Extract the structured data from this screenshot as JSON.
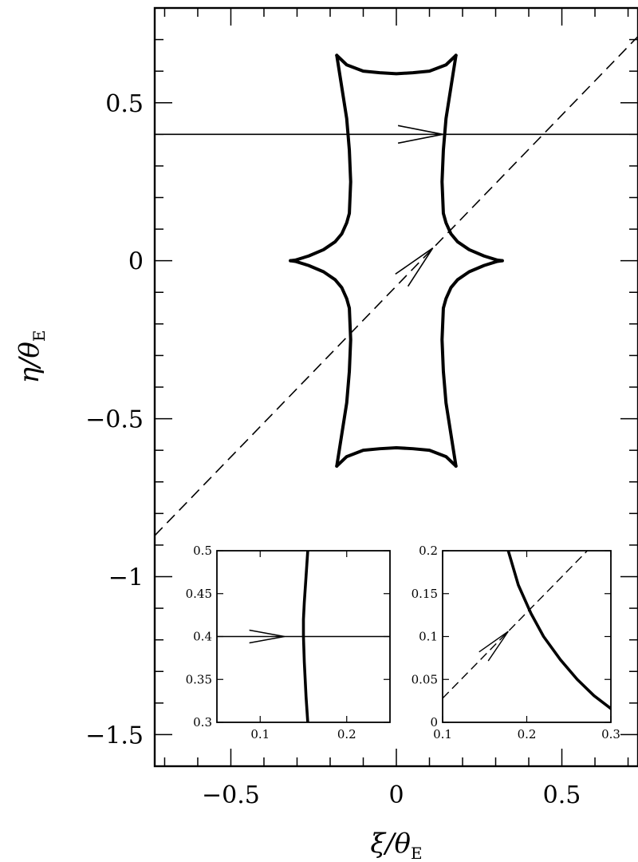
{
  "chart_data": [
    {
      "type": "line",
      "xlabel": "ξ/θ",
      "xlabel_sub": "E",
      "ylabel": "η/θ",
      "ylabel_sub": "E",
      "xlim": [
        -0.73,
        0.73
      ],
      "ylim": [
        -1.6,
        0.8
      ],
      "xticks": [
        -0.5,
        0,
        0.5
      ],
      "xtick_labels": [
        "−0.5",
        "0",
        "0.5"
      ],
      "yticks": [
        0.5,
        0,
        -0.5,
        -1,
        -1.5
      ],
      "ytick_labels": [
        "0.5",
        "0",
        "−0.5",
        "−1",
        "−1.5"
      ],
      "x_minor_step": 0.1,
      "y_minor_step": 0.1,
      "grid": false,
      "series": [
        {
          "style": "thick-solid",
          "x": [
            -0.18,
            -0.15,
            -0.1,
            -0.05,
            0,
            0.05,
            0.1,
            0.15,
            0.18
          ],
          "y": [
            0.65,
            0.62,
            0.6,
            0.595,
            0.592,
            0.595,
            0.6,
            0.62,
            0.65
          ]
        },
        {
          "style": "thick-solid",
          "x": [
            0.18,
            0.165,
            0.15,
            0.142,
            0.138,
            0.142,
            0.15,
            0.165,
            0.185,
            0.22,
            0.265,
            0.305,
            0.32
          ],
          "y": [
            0.65,
            0.55,
            0.45,
            0.35,
            0.25,
            0.15,
            0.12,
            0.085,
            0.06,
            0.035,
            0.015,
            0.002,
            0.0
          ]
        },
        {
          "style": "thick-solid",
          "x": [
            0.32,
            0.305,
            0.265,
            0.22,
            0.185,
            0.165,
            0.15,
            0.142,
            0.138,
            0.142,
            0.15,
            0.165,
            0.18
          ],
          "y": [
            0.0,
            -0.002,
            -0.015,
            -0.035,
            -0.06,
            -0.085,
            -0.12,
            -0.15,
            -0.25,
            -0.35,
            -0.45,
            -0.55,
            -0.65
          ]
        },
        {
          "style": "thick-solid",
          "x": [
            0.18,
            0.15,
            0.1,
            0.05,
            0,
            -0.05,
            -0.1,
            -0.15,
            -0.18
          ],
          "y": [
            -0.65,
            -0.62,
            -0.6,
            -0.595,
            -0.592,
            -0.595,
            -0.6,
            -0.62,
            -0.65
          ]
        },
        {
          "style": "thick-solid",
          "x": [
            -0.18,
            -0.165,
            -0.15,
            -0.142,
            -0.138,
            -0.142,
            -0.15,
            -0.165,
            -0.185,
            -0.22,
            -0.265,
            -0.305,
            -0.32
          ],
          "y": [
            -0.65,
            -0.55,
            -0.45,
            -0.35,
            -0.25,
            -0.15,
            -0.12,
            -0.085,
            -0.06,
            -0.035,
            -0.015,
            -0.002,
            0.0
          ]
        },
        {
          "style": "thick-solid",
          "x": [
            -0.32,
            -0.305,
            -0.265,
            -0.22,
            -0.185,
            -0.165,
            -0.15,
            -0.142,
            -0.138,
            -0.142,
            -0.15,
            -0.165,
            -0.18
          ],
          "y": [
            0.0,
            0.002,
            0.015,
            0.035,
            0.06,
            0.085,
            0.12,
            0.15,
            0.25,
            0.35,
            0.45,
            0.55,
            0.65
          ]
        },
        {
          "style": "thin-solid",
          "x": [
            -0.73,
            0.73
          ],
          "y": [
            0.4,
            0.4
          ],
          "arrow_at": [
            0.14,
            0.4
          ]
        },
        {
          "style": "dashed",
          "x": [
            -0.73,
            0.73
          ],
          "y": [
            -0.87,
            0.71
          ],
          "arrow_at": [
            0.11,
            0.04
          ]
        }
      ]
    },
    {
      "type": "line",
      "xlim": [
        0.05,
        0.25
      ],
      "ylim": [
        0.3,
        0.5
      ],
      "xticks": [
        0.1,
        0.2
      ],
      "xtick_labels": [
        "0.1",
        "0.2"
      ],
      "yticks": [
        0.3,
        0.35,
        0.4,
        0.45,
        0.5
      ],
      "ytick_labels": [
        "0.3",
        "0.35",
        "0.4",
        "0.45",
        "0.5"
      ],
      "series": [
        {
          "style": "thick-solid",
          "x": [
            0.155,
            0.153,
            0.151,
            0.15,
            0.15,
            0.151,
            0.152,
            0.153,
            0.155
          ],
          "y": [
            0.5,
            0.47,
            0.44,
            0.42,
            0.4,
            0.37,
            0.35,
            0.33,
            0.3
          ]
        },
        {
          "style": "thin-solid",
          "x": [
            0.05,
            0.25
          ],
          "y": [
            0.4,
            0.4
          ],
          "arrow_at": [
            0.128,
            0.4
          ]
        }
      ]
    },
    {
      "type": "line",
      "xlim": [
        0.1,
        0.3
      ],
      "ylim": [
        0,
        0.2
      ],
      "xticks": [
        0.1,
        0.2,
        0.3
      ],
      "xtick_labels": [
        "0.1",
        "0.2",
        "0.3"
      ],
      "yticks": [
        0,
        0.05,
        0.1,
        0.15,
        0.2
      ],
      "ytick_labels": [
        "0",
        "0.05",
        "0.1",
        "0.15",
        "0.2"
      ],
      "series": [
        {
          "style": "thick-solid",
          "x": [
            0.178,
            0.19,
            0.205,
            0.22,
            0.24,
            0.26,
            0.28,
            0.3
          ],
          "y": [
            0.2,
            0.16,
            0.127,
            0.1,
            0.073,
            0.05,
            0.031,
            0.016
          ]
        },
        {
          "style": "dashed",
          "x": [
            0.1,
            0.3
          ],
          "y": [
            0.028,
            0.228
          ],
          "arrow_at": [
            0.178,
            0.106
          ]
        }
      ]
    }
  ]
}
